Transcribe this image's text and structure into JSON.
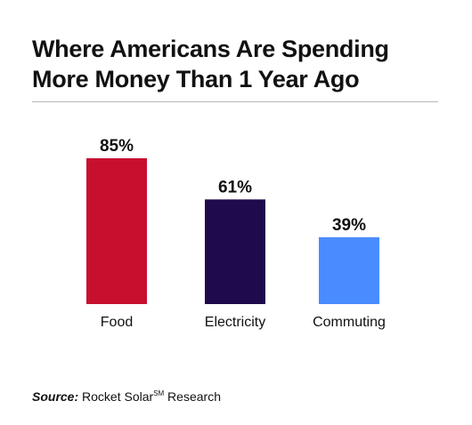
{
  "title_lines": [
    "Where Americans Are Spending",
    "More Money Than 1 Year Ago"
  ],
  "source": {
    "label": "Source:",
    "text": "Rocket Solar",
    "superscript": "SM",
    "text_after": " Research"
  },
  "chart_data": {
    "type": "bar",
    "title": "Where Americans Are Spending More Money Than 1 Year Ago",
    "categories": [
      "Food",
      "Electricity",
      "Commuting"
    ],
    "values": [
      85,
      61,
      39
    ],
    "value_labels": [
      "85%",
      "61%",
      "39%"
    ],
    "unit": "%",
    "colors": [
      "#c8102e",
      "#1f0a4d",
      "#4a8cff"
    ],
    "ylim": [
      0,
      100
    ],
    "grid": false,
    "legend": "none"
  }
}
